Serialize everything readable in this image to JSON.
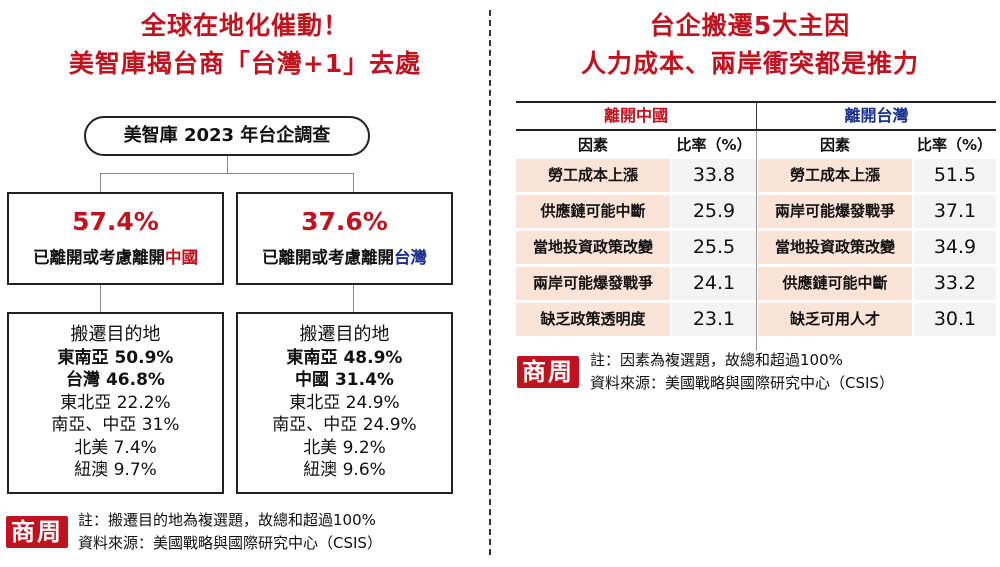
{
  "left": {
    "title_line1": "全球在地化催動！",
    "title_line2": "美智庫揭台商「台灣+1」去處",
    "survey_label": "美智庫 2023 年台企調查",
    "china": {
      "percent": "57.4%",
      "desc_prefix": "已離開或考慮離開",
      "desc_place": "中國",
      "dest_title": "搬遷目的地",
      "destinations": [
        {
          "name": "東南亞",
          "value": "50.9%",
          "bold": true
        },
        {
          "name": "台灣",
          "value": "46.8%",
          "bold": true
        },
        {
          "name": "東北亞",
          "value": "22.2%",
          "bold": false
        },
        {
          "name": "南亞、中亞",
          "value": "31%",
          "bold": false
        },
        {
          "name": "北美",
          "value": "7.4%",
          "bold": false
        },
        {
          "name": "紐澳",
          "value": "9.7%",
          "bold": false
        }
      ]
    },
    "taiwan": {
      "percent": "37.6%",
      "desc_prefix": "已離開或考慮離開",
      "desc_place": "台灣",
      "dest_title": "搬遷目的地",
      "destinations": [
        {
          "name": "東南亞",
          "value": "48.9%",
          "bold": true
        },
        {
          "name": "中國",
          "value": "31.4%",
          "bold": true
        },
        {
          "name": "東北亞",
          "value": "24.9%",
          "bold": false
        },
        {
          "name": "南亞、中亞",
          "value": "24.9%",
          "bold": false
        },
        {
          "name": "北美",
          "value": "9.2%",
          "bold": false
        },
        {
          "name": "紐澳",
          "value": "9.6%",
          "bold": false
        }
      ]
    },
    "note": "註：搬遷目的地為複選題，故總和超過100%",
    "source": "資料來源：美國戰略與國際研究中心（CSIS）"
  },
  "right": {
    "title_line1": "台企搬遷5大主因",
    "title_line2": "人力成本、兩岸衝突都是推力",
    "note": "註：因素為複選題，故總和超過100%",
    "source": "資料來源：美國戰略與國際研究中心（CSIS）"
  },
  "logo_text": "商周",
  "colors": {
    "accent_red": "#c0121f",
    "taiwan_blue": "#1a2f8f",
    "factor_bg": "#fbe3d8"
  },
  "chart_data": {
    "type": "table",
    "groups": [
      {
        "name": "離開中國",
        "col_factor": "因素",
        "col_ratio": "比率（%）",
        "rows": [
          {
            "factor": "勞工成本上漲",
            "value": "33.8"
          },
          {
            "factor": "供應鏈可能中斷",
            "value": "25.9"
          },
          {
            "factor": "當地投資政策改變",
            "value": "25.5"
          },
          {
            "factor": "兩岸可能爆發戰爭",
            "value": "24.1"
          },
          {
            "factor": "缺乏政策透明度",
            "value": "23.1"
          }
        ]
      },
      {
        "name": "離開台灣",
        "col_factor": "因素",
        "col_ratio": "比率（%）",
        "rows": [
          {
            "factor": "勞工成本上漲",
            "value": "51.5"
          },
          {
            "factor": "兩岸可能爆發戰爭",
            "value": "37.1"
          },
          {
            "factor": "當地投資政策改變",
            "value": "34.9"
          },
          {
            "factor": "供應鏈可能中斷",
            "value": "33.2"
          },
          {
            "factor": "缺乏可用人才",
            "value": "30.1"
          }
        ]
      }
    ]
  }
}
